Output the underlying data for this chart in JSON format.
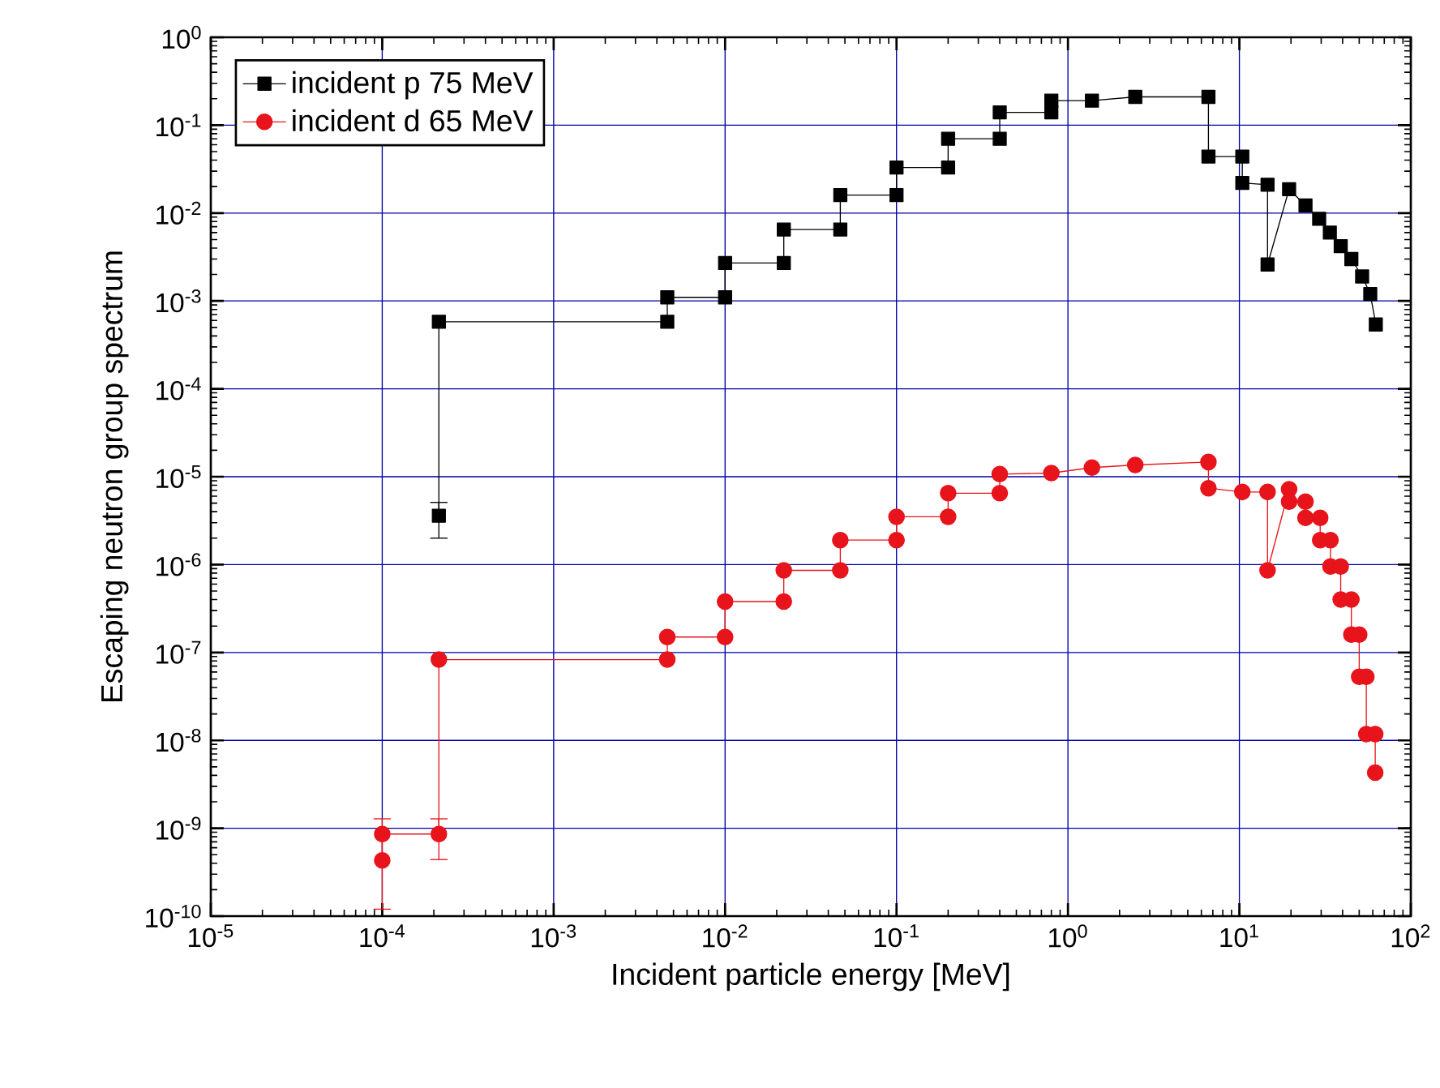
{
  "chart_data": {
    "type": "line",
    "xlabel": "Incident particle energy [MeV]",
    "ylabel": "Escaping neutron group spectrum",
    "log": "xy",
    "grid": true,
    "legend": "top left",
    "line_style": "solid",
    "xlim": [
      1e-05,
      100
    ],
    "ylim": [
      1e-10,
      1
    ],
    "xticks": [
      {
        "value": 1e-05,
        "label": "10$^{-5}$"
      },
      {
        "value": 0.0001,
        "label": "10$^{-4}$"
      },
      {
        "value": 0.001,
        "label": "10$^{-3}$"
      },
      {
        "value": 0.01,
        "label": "10$^{-2}$"
      },
      {
        "value": 0.1,
        "label": "10$^{-1}$"
      },
      {
        "value": 1,
        "label": "10$^{0}$"
      },
      {
        "value": 10,
        "label": "10$^{1}$"
      },
      {
        "value": 100,
        "label": "10$^{2}$"
      }
    ],
    "yticks": [
      {
        "value": 1e-10,
        "label": "10$^{-10}$"
      },
      {
        "value": 1e-09,
        "label": "10$^{-9}$"
      },
      {
        "value": 1e-08,
        "label": "10$^{-8}$"
      },
      {
        "value": 1e-07,
        "label": "10$^{-7}$"
      },
      {
        "value": 1e-06,
        "label": "10$^{-6}$"
      },
      {
        "value": 1e-05,
        "label": "10$^{-5}$"
      },
      {
        "value": 0.0001,
        "label": "10$^{-4}$"
      },
      {
        "value": 0.001,
        "label": "10$^{-3}$"
      },
      {
        "value": 0.01,
        "label": "10$^{-2}$"
      },
      {
        "value": 0.1,
        "label": "10$^{-1}$"
      },
      {
        "value": 1,
        "label": "10$^{0}$"
      }
    ],
    "series": [
      {
        "name": "incident p 75 MeV",
        "color": "#000000",
        "marker": "square",
        "x": [
          0.000214,
          0.000214,
          0.0046,
          0.0046,
          0.01,
          0.01,
          0.022,
          0.022,
          0.047,
          0.047,
          0.1,
          0.1,
          0.2,
          0.2,
          0.4,
          0.4,
          0.8,
          0.8,
          1.38,
          2.47,
          6.6,
          6.6,
          10.4,
          10.4,
          14.6,
          14.6,
          19.5,
          24.3,
          29.2,
          33.7,
          39,
          45,
          52,
          58,
          62.5
        ],
        "values": [
          3.6e-06,
          0.00058,
          0.00058,
          0.0011,
          0.0011,
          0.0027,
          0.0027,
          0.0065,
          0.0065,
          0.016,
          0.016,
          0.033,
          0.033,
          0.07,
          0.07,
          0.14,
          0.14,
          0.19,
          0.19,
          0.21,
          0.21,
          0.044,
          0.044,
          0.022,
          0.021,
          0.0026,
          0.0187,
          0.0122,
          0.0086,
          0.006,
          0.0042,
          0.003,
          0.0019,
          0.0012,
          0.00054
        ],
        "errors": [
          [
            2e-06,
            5.1e-06
          ],
          null,
          null,
          null,
          null,
          null,
          null,
          null,
          null,
          null,
          null,
          null,
          null,
          null,
          null,
          null,
          null,
          null,
          null,
          null,
          null,
          null,
          null,
          null,
          null,
          null,
          null,
          null,
          null,
          null,
          null,
          null,
          null,
          null,
          null
        ]
      },
      {
        "name": "incident d 65 MeV",
        "color": "#e8141b",
        "marker": "circle",
        "x": [
          0.0001,
          0.0001,
          0.000214,
          0.000214,
          0.0046,
          0.0046,
          0.01,
          0.01,
          0.022,
          0.022,
          0.047,
          0.047,
          0.1,
          0.1,
          0.2,
          0.2,
          0.4,
          0.4,
          0.8,
          1.38,
          2.47,
          6.6,
          6.6,
          10.4,
          14.6,
          14.6,
          19.5,
          19.5,
          24.3,
          24.3,
          29.6,
          29.6,
          34,
          34,
          39,
          39,
          45,
          45,
          50,
          50,
          55,
          55,
          62,
          62
        ],
        "values": [
          4.3e-10,
          8.6e-10,
          8.6e-10,
          8.3e-08,
          8.3e-08,
          1.5e-07,
          1.5e-07,
          3.8e-07,
          3.8e-07,
          8.6e-07,
          8.6e-07,
          1.9e-06,
          1.9e-06,
          3.5e-06,
          3.5e-06,
          6.5e-06,
          6.5e-06,
          1.07e-05,
          1.1e-05,
          1.27e-05,
          1.36e-05,
          1.47e-05,
          7.4e-06,
          6.7e-06,
          6.7e-06,
          8.6e-07,
          7.2e-06,
          5.2e-06,
          5.2e-06,
          3.4e-06,
          3.4e-06,
          1.9e-06,
          1.9e-06,
          9.5e-07,
          9.5e-07,
          4e-07,
          4e-07,
          1.6e-07,
          1.6e-07,
          5.3e-08,
          5.3e-08,
          1.18e-08,
          1.18e-08,
          4.3e-09
        ],
        "errors": [
          [
            1.2e-10,
            1.28e-09
          ],
          null,
          [
            4.4e-10,
            1.28e-09
          ],
          null,
          null,
          null,
          null,
          null,
          null,
          null,
          null,
          null,
          null,
          null,
          null,
          null,
          null,
          null,
          null,
          null,
          null,
          null,
          null,
          null,
          null,
          null,
          null,
          null,
          null,
          null,
          null,
          null,
          null,
          null,
          null,
          null,
          null,
          null,
          null,
          null,
          null,
          null,
          null,
          null
        ]
      }
    ]
  }
}
